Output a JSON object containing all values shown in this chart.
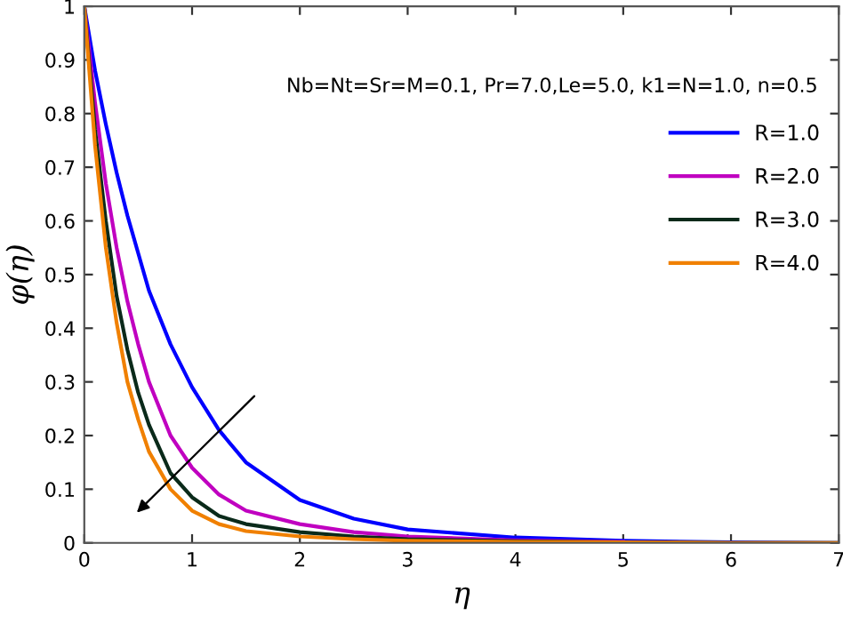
{
  "chart_data": {
    "type": "line",
    "xlabel": "η",
    "ylabel": "φ(η)",
    "annotations": [
      "Nb=Nt=Sr=M=0.1, Pr=7.0,Le=5.0, k1=N=1.0, n=0.5"
    ],
    "x": [
      0,
      0.1,
      0.2,
      0.3,
      0.4,
      0.5,
      0.6,
      0.8,
      1,
      1.25,
      1.5,
      2,
      2.5,
      3,
      4,
      5,
      6,
      7
    ],
    "series": [
      {
        "name": "R=1.0",
        "color": "#0000ff",
        "values": [
          1,
          0.88,
          0.78,
          0.69,
          0.61,
          0.54,
          0.47,
          0.37,
          0.29,
          0.21,
          0.15,
          0.08,
          0.045,
          0.025,
          0.01,
          0.004,
          0.001,
          0
        ]
      },
      {
        "name": "R=2.0",
        "color": "#c000c0",
        "values": [
          1,
          0.82,
          0.67,
          0.55,
          0.45,
          0.37,
          0.3,
          0.2,
          0.14,
          0.09,
          0.06,
          0.035,
          0.02,
          0.012,
          0.005,
          0.002,
          null,
          null
        ]
      },
      {
        "name": "R=3.0",
        "color": "#0a2a1a",
        "values": [
          1,
          0.77,
          0.6,
          0.46,
          0.36,
          0.28,
          0.22,
          0.13,
          0.085,
          0.05,
          0.035,
          0.02,
          0.012,
          0.007,
          0.003,
          0.001,
          0,
          0
        ]
      },
      {
        "name": "R=4.0",
        "color": "#f08000",
        "values": [
          1,
          0.74,
          0.55,
          0.41,
          0.3,
          0.23,
          0.17,
          0.1,
          0.06,
          0.035,
          0.022,
          0.012,
          0.007,
          0.004,
          0.002,
          0.001,
          0,
          0
        ]
      }
    ],
    "xlim": [
      0,
      7
    ],
    "ylim": [
      0,
      1
    ],
    "xticks": [
      0,
      1,
      2,
      3,
      4,
      5,
      6,
      7
    ],
    "yticks": [
      0,
      0.1,
      0.2,
      0.3,
      0.4,
      0.5,
      0.6,
      0.7,
      0.8,
      0.9,
      1
    ],
    "grid": false,
    "legend": "right",
    "marker": "none",
    "line_style": "solid"
  }
}
